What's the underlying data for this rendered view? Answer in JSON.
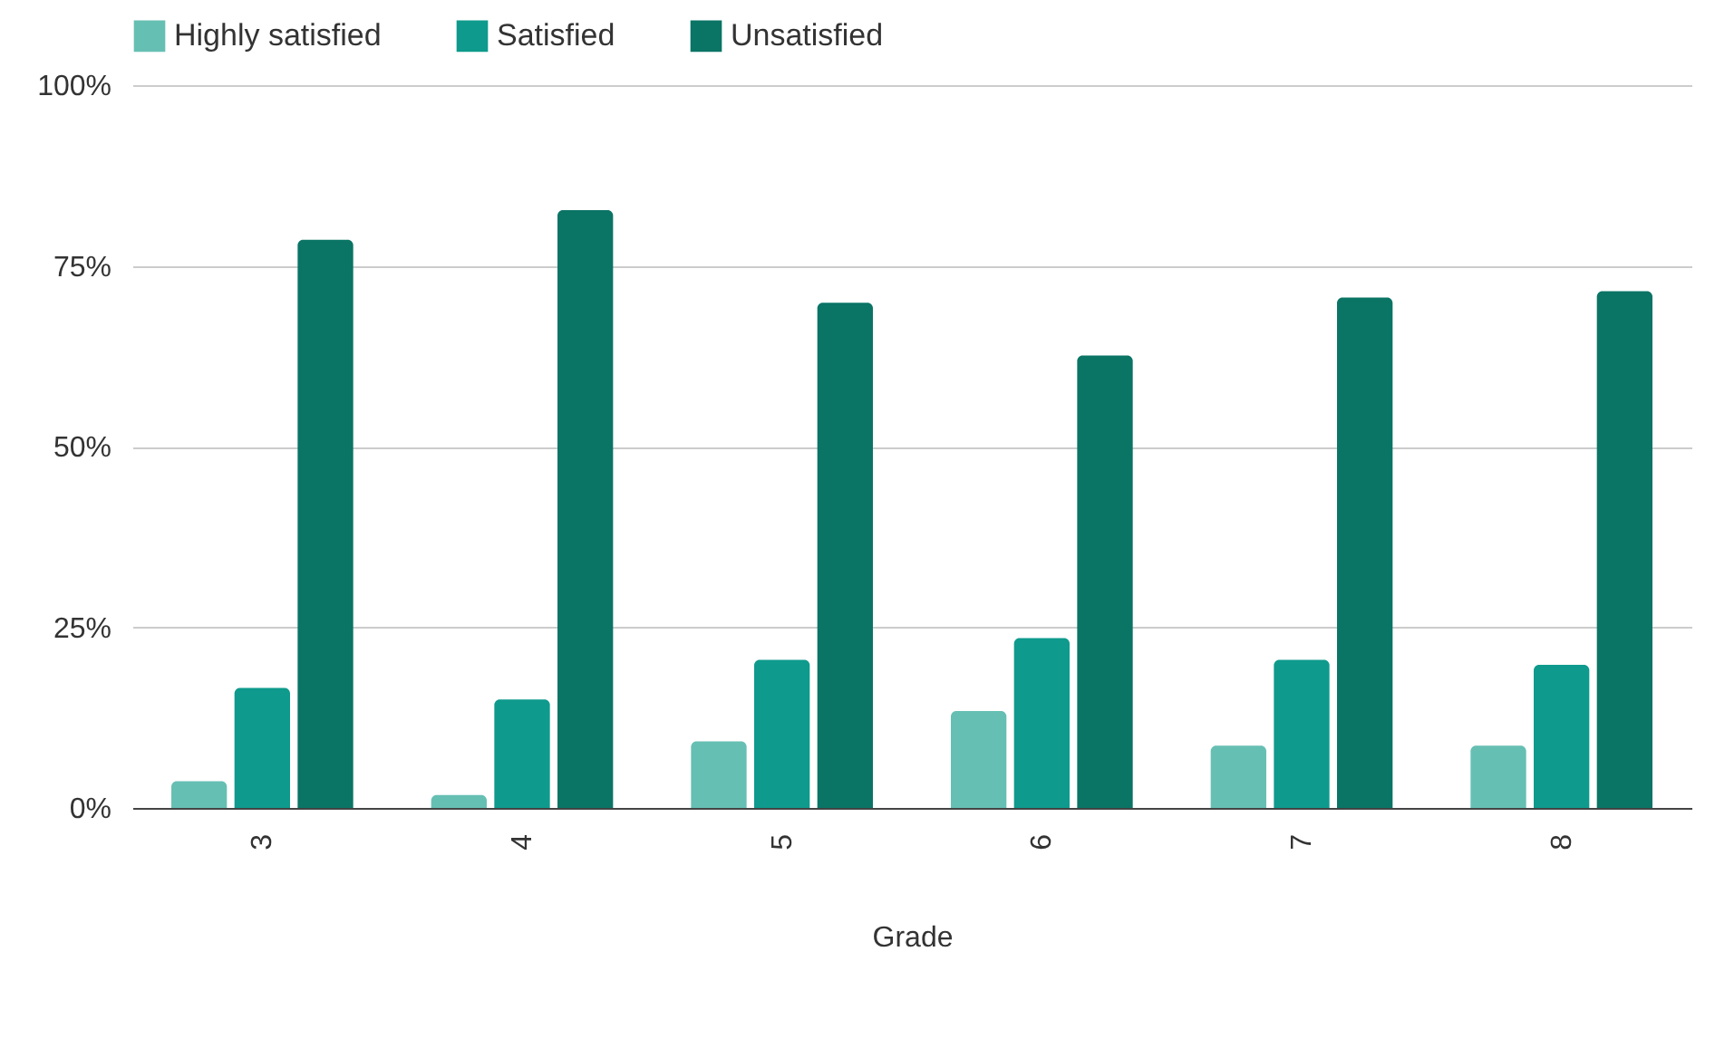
{
  "chart_data": {
    "type": "bar",
    "xlabel": "Grade",
    "categories": [
      "3",
      "4",
      "5",
      "6",
      "7",
      "8"
    ],
    "series": [
      {
        "name": "Highly satisfied",
        "color": "#66bfb3",
        "values": [
          3.7,
          1.8,
          9.2,
          13.4,
          8.6,
          8.6
        ]
      },
      {
        "name": "Satisfied",
        "color": "#0e9a8c",
        "values": [
          16.6,
          15,
          20.5,
          23.5,
          20.5,
          19.8
        ]
      },
      {
        "name": "Unsatisfied",
        "color": "#0a7465",
        "values": [
          78.6,
          82.7,
          69.9,
          62.6,
          70.6,
          71.5
        ]
      }
    ],
    "ylim": [
      0,
      100
    ],
    "yticks": [
      {
        "value": 0,
        "label": "0%"
      },
      {
        "value": 25,
        "label": "25%"
      },
      {
        "value": 50,
        "label": "50%"
      },
      {
        "value": 75,
        "label": "75%"
      },
      {
        "value": 100,
        "label": "100%"
      }
    ],
    "grid": "y",
    "legend": "top"
  }
}
